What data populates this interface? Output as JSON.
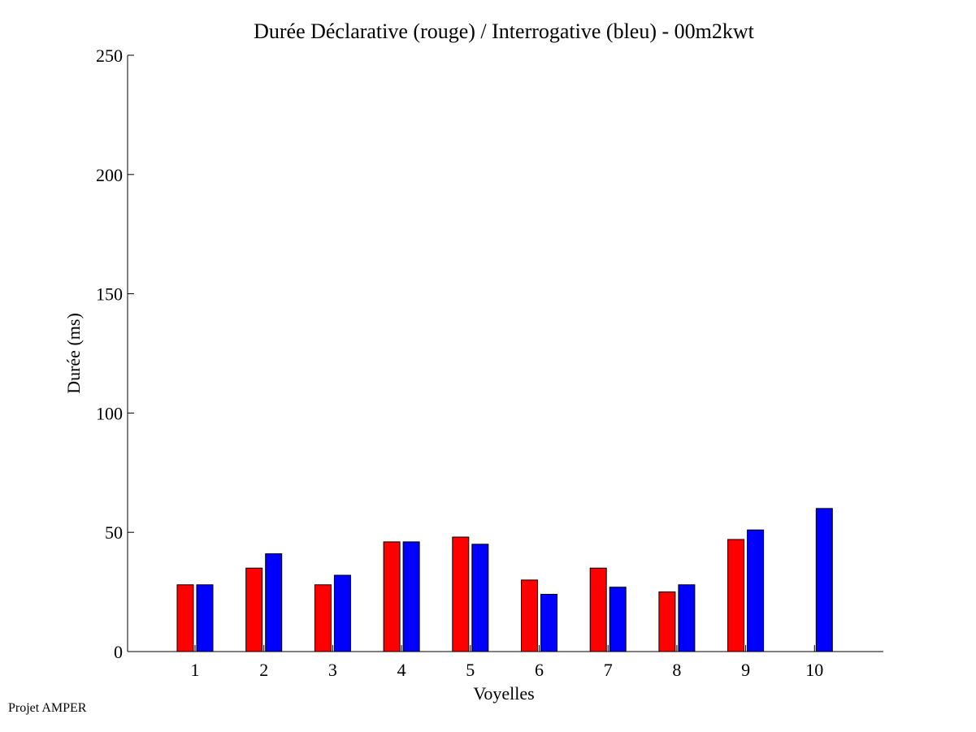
{
  "footer": {
    "text": "Projet AMPER"
  },
  "chart_data": {
    "type": "bar",
    "title": "Durée Déclarative (rouge) / Interrogative (bleu) - 00m2kwt",
    "xlabel": "Voyelles",
    "ylabel": "Durée (ms)",
    "ylim": [
      0,
      250
    ],
    "yticks": [
      0,
      50,
      100,
      150,
      200,
      250
    ],
    "categories": [
      "1",
      "2",
      "3",
      "4",
      "5",
      "6",
      "7",
      "8",
      "9",
      "10"
    ],
    "series": [
      {
        "color": "#ff0000",
        "values": [
          28,
          35,
          28,
          46,
          48,
          30,
          35,
          25,
          47,
          0
        ]
      },
      {
        "color": "#0000ff",
        "values": [
          28,
          41,
          32,
          46,
          45,
          24,
          27,
          28,
          51,
          60
        ]
      }
    ],
    "grid": false,
    "legend": "none"
  }
}
